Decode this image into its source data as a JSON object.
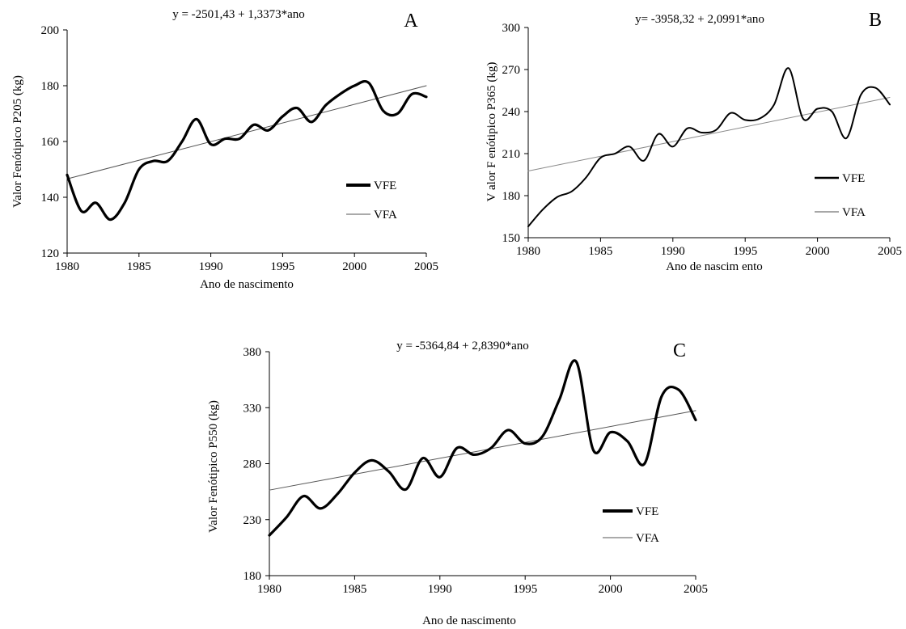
{
  "chart_data": [
    {
      "type": "line",
      "panel": "A",
      "equation": "y = -2501,43 + 1,3373*ano",
      "xlabel": "Ano de nascimento",
      "ylabel": "Valor Fenótipico P205 (kg)",
      "xlim": [
        1980,
        2005
      ],
      "ylim": [
        120,
        200
      ],
      "xticks": [
        1980,
        1985,
        1990,
        1995,
        2000,
        2005
      ],
      "yticks": [
        120,
        140,
        160,
        180,
        200
      ],
      "grid": false,
      "legend_position": "right",
      "series": [
        {
          "name": "VFE",
          "color": "#000000",
          "style": "thick",
          "x": [
            1980,
            1981,
            1982,
            1983,
            1984,
            1985,
            1986,
            1987,
            1988,
            1989,
            1990,
            1991,
            1992,
            1993,
            1994,
            1995,
            1996,
            1997,
            1998,
            1999,
            2000,
            2001,
            2002,
            2003,
            2004,
            2005
          ],
          "y": [
            148,
            135,
            138,
            132,
            138,
            150,
            153,
            153,
            160,
            168,
            159,
            161,
            161,
            166,
            164,
            169,
            172,
            167,
            173,
            177,
            180,
            181,
            171,
            170,
            177,
            176
          ]
        },
        {
          "name": "VFA",
          "color": "#555555",
          "style": "thin",
          "x": [
            1980,
            2005
          ],
          "y": [
            146.6,
            180.0
          ]
        }
      ]
    },
    {
      "type": "line",
      "panel": "B",
      "equation": "y= -3958,32 + 2,0991*ano",
      "xlabel": "Ano de nascim ento",
      "ylabel": "V alor F enótipico P365 (kg)",
      "xlim": [
        1980,
        2005
      ],
      "ylim": [
        150,
        300
      ],
      "xticks": [
        1980,
        1985,
        1990,
        1995,
        2000,
        2005
      ],
      "yticks": [
        150,
        180,
        210,
        240,
        270,
        300
      ],
      "grid": false,
      "legend_position": "right",
      "series": [
        {
          "name": "VFE",
          "color": "#000000",
          "style": "medium",
          "x": [
            1980,
            1981,
            1982,
            1983,
            1984,
            1985,
            1986,
            1987,
            1988,
            1989,
            1990,
            1991,
            1992,
            1993,
            1994,
            1995,
            1996,
            1997,
            1998,
            1999,
            2000,
            2001,
            2002,
            2003,
            2004,
            2005
          ],
          "y": [
            158,
            170,
            179,
            183,
            193,
            207,
            210,
            215,
            205,
            224,
            215,
            228,
            225,
            227,
            239,
            234,
            235,
            245,
            271,
            235,
            242,
            240,
            221,
            252,
            257,
            245
          ]
        },
        {
          "name": "VFA",
          "color": "#8a8a8a",
          "style": "thin",
          "x": [
            1980,
            2005
          ],
          "y": [
            197.6,
            250.1
          ]
        }
      ]
    },
    {
      "type": "line",
      "panel": "C",
      "equation": "y = -5364,84 + 2,8390*ano",
      "xlabel": "Ano de nascimento",
      "ylabel": "Valor Fenótipico P550 (kg)",
      "xlim": [
        1980,
        2005
      ],
      "ylim": [
        180,
        380
      ],
      "xticks": [
        1980,
        1985,
        1990,
        1995,
        2000,
        2005
      ],
      "yticks": [
        180,
        230,
        280,
        330,
        380
      ],
      "grid": false,
      "legend_position": "right",
      "series": [
        {
          "name": "VFE",
          "color": "#000000",
          "style": "thick",
          "x": [
            1980,
            1981,
            1982,
            1983,
            1984,
            1985,
            1986,
            1987,
            1988,
            1989,
            1990,
            1991,
            1992,
            1993,
            1994,
            1995,
            1996,
            1997,
            1998,
            1999,
            2000,
            2001,
            2002,
            2003,
            2004,
            2005
          ],
          "y": [
            216,
            232,
            251,
            240,
            253,
            272,
            283,
            273,
            257,
            285,
            268,
            294,
            288,
            294,
            310,
            298,
            304,
            337,
            371,
            292,
            308,
            300,
            280,
            340,
            346,
            319
          ]
        },
        {
          "name": "VFA",
          "color": "#555555",
          "style": "thin",
          "x": [
            1980,
            2005
          ],
          "y": [
            256.4,
            327.4
          ]
        }
      ]
    }
  ]
}
